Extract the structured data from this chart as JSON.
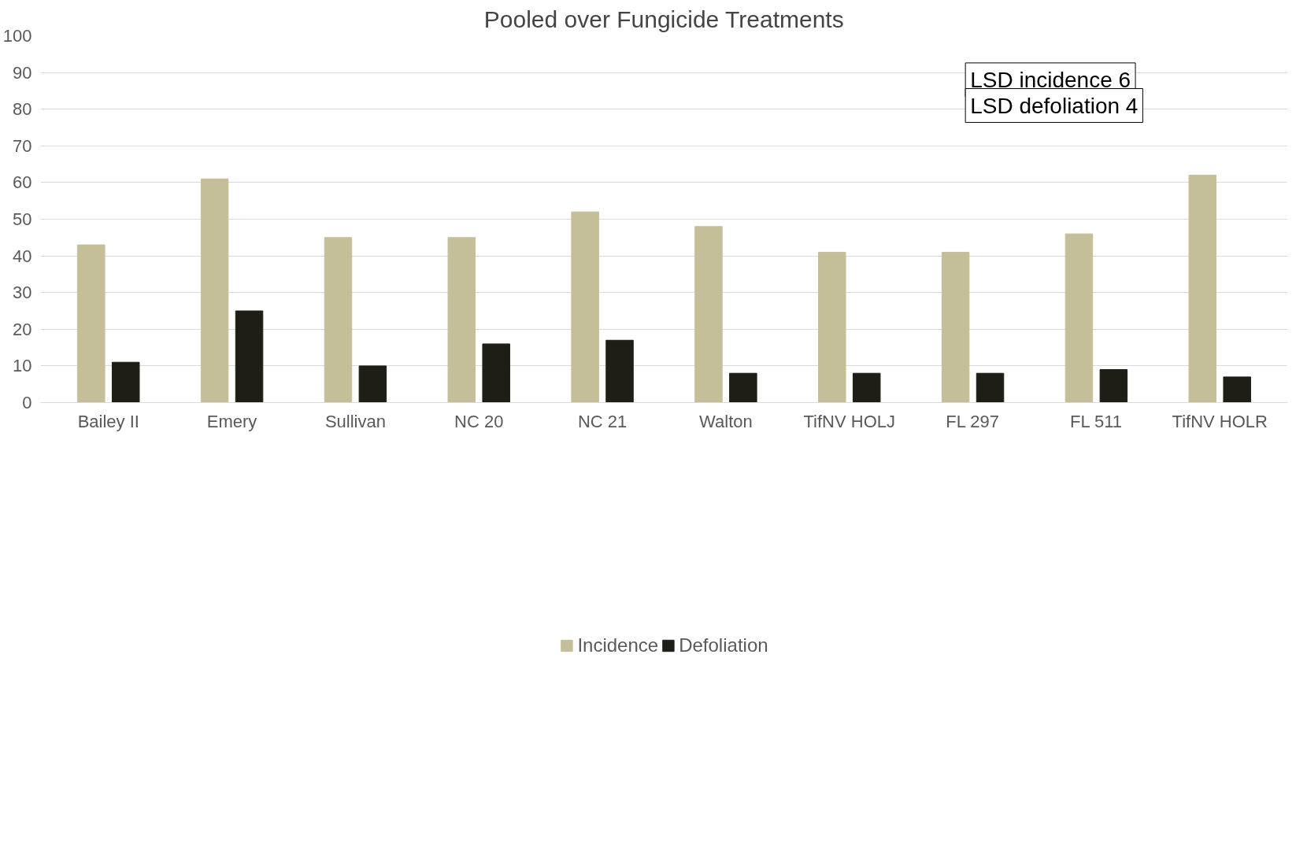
{
  "chart_data": {
    "type": "bar",
    "title": "Pooled over Fungicide Treatments",
    "categories": [
      "Bailey II",
      "Emery",
      "Sullivan",
      "NC 20",
      "NC 21",
      "Walton",
      "TifNV HOLJ",
      "FL 297",
      "FL 511",
      "TifNV HOLR"
    ],
    "series": [
      {
        "name": "Incidence",
        "color": "#c5bf99",
        "values": [
          43,
          61,
          45,
          45,
          52,
          48,
          41,
          41,
          46,
          62
        ]
      },
      {
        "name": "Defoliation",
        "color": "#1f1e16",
        "values": [
          11,
          25,
          10,
          16,
          17,
          8,
          8,
          8,
          9,
          7
        ]
      }
    ],
    "ylim": [
      0,
      100
    ],
    "yticks": [
      0,
      10,
      20,
      30,
      40,
      50,
      60,
      70,
      80,
      90,
      100
    ],
    "grid": "y",
    "legend": "bottom",
    "annotations": [
      "LSD incidence 6",
      "LSD defoliation 4"
    ]
  }
}
